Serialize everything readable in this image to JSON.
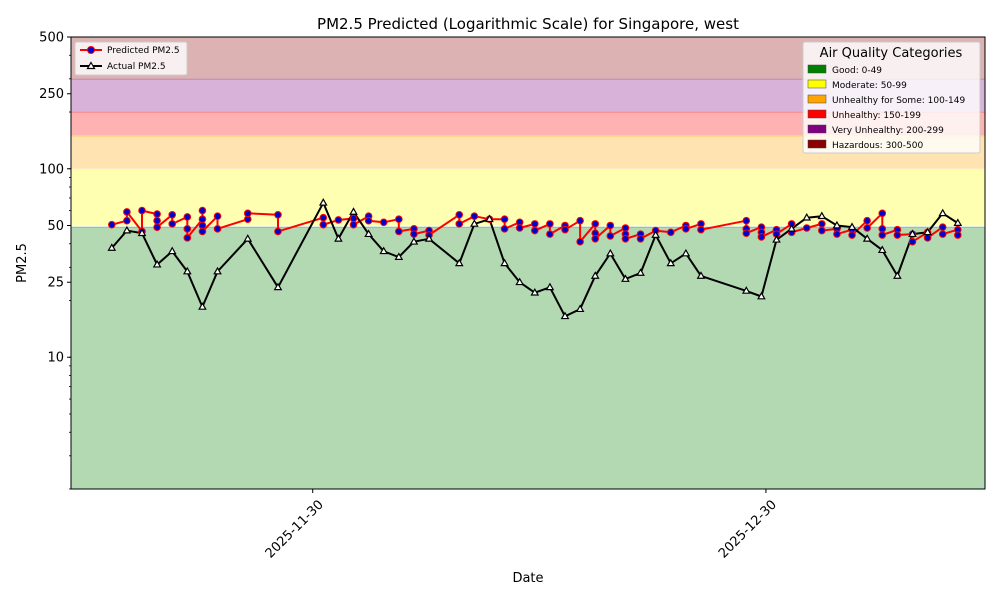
{
  "chart_data": {
    "type": "line",
    "title": "PM2.5 Predicted (Logarithmic Scale) for Singapore, west",
    "xlabel": "Date",
    "ylabel": "PM2.5",
    "yscale": "log",
    "ylim": [
      2,
      500
    ],
    "xlim_day_offsets": [
      -16,
      44.5
    ],
    "y_ticks": [
      {
        "value": 10,
        "label": "10"
      },
      {
        "value": 25,
        "label": "25"
      },
      {
        "value": 50,
        "label": "50"
      },
      {
        "value": 100,
        "label": "100"
      },
      {
        "value": 250,
        "label": "250"
      },
      {
        "value": 500,
        "label": "500"
      }
    ],
    "x_ticks": [
      {
        "day_offset": 0,
        "label": "2025-11-30"
      },
      {
        "day_offset": 30,
        "label": "2025-12-30"
      }
    ],
    "categories_bands": [
      {
        "name": "Good: 0-49",
        "min": 0,
        "max": 49,
        "color": "#008000"
      },
      {
        "name": "Moderate: 50-99",
        "min": 50,
        "max": 99,
        "color": "#FFFF00"
      },
      {
        "name": "Unhealthy for Some: 100-149",
        "min": 100,
        "max": 149,
        "color": "#FFA500"
      },
      {
        "name": "Unhealthy: 150-199",
        "min": 150,
        "max": 199,
        "color": "#FF0000"
      },
      {
        "name": "Very Unhealthy: 200-299",
        "min": 200,
        "max": 299,
        "color": "#800080"
      },
      {
        "name": "Hazardous: 300-500",
        "min": 300,
        "max": 500,
        "color": "#8B0000"
      }
    ],
    "legend_categories_title": "Air Quality Categories",
    "series": [
      {
        "name": "Predicted PM2.5",
        "color": "#FF0000",
        "marker_color": "#0000CC",
        "points": [
          [
            -13.3,
            50.5
          ],
          [
            -12.3,
            53
          ],
          [
            -12.3,
            59
          ],
          [
            -11.3,
            46.5
          ],
          [
            -11.3,
            60
          ],
          [
            -10.3,
            57.5
          ],
          [
            -10.3,
            53
          ],
          [
            -10.3,
            49
          ],
          [
            -9.3,
            57
          ],
          [
            -9.3,
            51
          ],
          [
            -8.3,
            55.5
          ],
          [
            -8.3,
            48
          ],
          [
            -8.3,
            43
          ],
          [
            -7.3,
            54
          ],
          [
            -7.3,
            60
          ],
          [
            -7.3,
            50
          ],
          [
            -7.3,
            46.5
          ],
          [
            -6.3,
            56
          ],
          [
            -6.3,
            48
          ],
          [
            -4.3,
            54
          ],
          [
            -4.3,
            58
          ],
          [
            -2.3,
            57
          ],
          [
            -2.3,
            46.5
          ],
          [
            0.7,
            55
          ],
          [
            0.7,
            50.5
          ],
          [
            1.7,
            53.5
          ],
          [
            2.7,
            54.5
          ],
          [
            2.7,
            50.5
          ],
          [
            3.7,
            56
          ],
          [
            3.7,
            53
          ],
          [
            4.7,
            52
          ],
          [
            5.7,
            54
          ],
          [
            5.7,
            46.5
          ],
          [
            6.7,
            48
          ],
          [
            6.7,
            45
          ],
          [
            7.7,
            47
          ],
          [
            7.7,
            44.5
          ],
          [
            9.7,
            57
          ],
          [
            9.7,
            51
          ],
          [
            10.7,
            56
          ],
          [
            11.7,
            54
          ],
          [
            12.7,
            54
          ],
          [
            12.7,
            48
          ],
          [
            13.7,
            52
          ],
          [
            13.7,
            48.5
          ],
          [
            14.7,
            51
          ],
          [
            14.7,
            47
          ],
          [
            15.7,
            51
          ],
          [
            15.7,
            45
          ],
          [
            16.7,
            50
          ],
          [
            16.7,
            47.5
          ],
          [
            17.7,
            53
          ],
          [
            17.7,
            41
          ],
          [
            18.7,
            51
          ],
          [
            18.7,
            45.5
          ],
          [
            18.7,
            42.5
          ],
          [
            19.7,
            50
          ],
          [
            19.7,
            44
          ],
          [
            20.7,
            48.5
          ],
          [
            20.7,
            45
          ],
          [
            20.7,
            42.5
          ],
          [
            21.7,
            45
          ],
          [
            21.7,
            42.5
          ],
          [
            22.7,
            47
          ],
          [
            23.7,
            46
          ],
          [
            24.7,
            50
          ],
          [
            24.7,
            48
          ],
          [
            25.7,
            51
          ],
          [
            25.7,
            47.5
          ],
          [
            28.7,
            53
          ],
          [
            28.7,
            48
          ],
          [
            28.7,
            45.5
          ],
          [
            29.7,
            49
          ],
          [
            29.7,
            46
          ],
          [
            29.7,
            43.5
          ],
          [
            30.7,
            47.5
          ],
          [
            30.7,
            45
          ],
          [
            31.7,
            51
          ],
          [
            31.7,
            46
          ],
          [
            32.7,
            48.5
          ],
          [
            33.7,
            51
          ],
          [
            33.7,
            47
          ],
          [
            34.7,
            48
          ],
          [
            34.7,
            45
          ],
          [
            35.7,
            47.5
          ],
          [
            35.7,
            44.5
          ],
          [
            36.7,
            53
          ],
          [
            36.7,
            48.5
          ],
          [
            37.7,
            58
          ],
          [
            37.7,
            48
          ],
          [
            37.7,
            44.5
          ],
          [
            38.7,
            47.5
          ],
          [
            38.7,
            44.5
          ],
          [
            39.7,
            45
          ],
          [
            39.7,
            41
          ],
          [
            40.7,
            46
          ],
          [
            40.7,
            43
          ],
          [
            41.7,
            49
          ],
          [
            41.7,
            45
          ],
          [
            42.7,
            47.5
          ],
          [
            42.7,
            44.5
          ]
        ]
      },
      {
        "name": "Actual PM2.5",
        "color": "#000000",
        "marker_color": "#000000",
        "points": [
          [
            -13.3,
            38
          ],
          [
            -12.3,
            47
          ],
          [
            -11.3,
            45.5
          ],
          [
            -10.3,
            31
          ],
          [
            -9.3,
            36.5
          ],
          [
            -8.3,
            28.5
          ],
          [
            -7.3,
            18.5
          ],
          [
            -6.3,
            28.5
          ],
          [
            -4.3,
            42.5
          ],
          [
            -2.3,
            23.5
          ],
          [
            0.7,
            66
          ],
          [
            1.7,
            42.5
          ],
          [
            2.7,
            59
          ],
          [
            3.7,
            45
          ],
          [
            4.7,
            36.5
          ],
          [
            5.7,
            34
          ],
          [
            6.7,
            41
          ],
          [
            7.7,
            42.5
          ],
          [
            9.7,
            31.5
          ],
          [
            10.7,
            51
          ],
          [
            11.7,
            54
          ],
          [
            12.7,
            31.5
          ],
          [
            13.7,
            25
          ],
          [
            14.7,
            22
          ],
          [
            15.7,
            23.5
          ],
          [
            16.7,
            16.5
          ],
          [
            17.7,
            18
          ],
          [
            18.7,
            27
          ],
          [
            19.7,
            35.5
          ],
          [
            20.7,
            26
          ],
          [
            21.7,
            28
          ],
          [
            22.7,
            44.5
          ],
          [
            23.7,
            31.5
          ],
          [
            24.7,
            35.5
          ],
          [
            25.7,
            27
          ],
          [
            28.7,
            22.5
          ],
          [
            29.7,
            21
          ],
          [
            30.7,
            42
          ],
          [
            31.7,
            48
          ],
          [
            32.7,
            55
          ],
          [
            33.7,
            56
          ],
          [
            34.7,
            50
          ],
          [
            35.7,
            49
          ],
          [
            36.7,
            42.5
          ],
          [
            37.7,
            37
          ],
          [
            38.7,
            27
          ],
          [
            39.7,
            45
          ],
          [
            40.7,
            46
          ],
          [
            41.7,
            58
          ],
          [
            42.7,
            51.5
          ]
        ]
      }
    ]
  }
}
